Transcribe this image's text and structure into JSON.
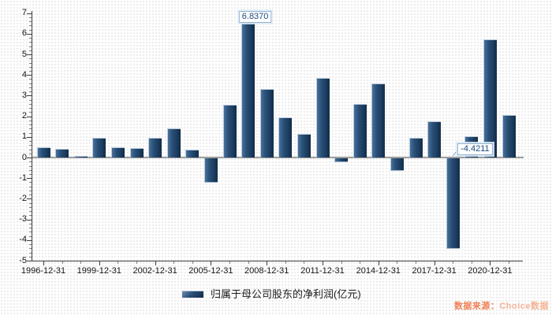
{
  "chart_data": {
    "type": "bar",
    "series_name": "归属于母公司股东的净利润(亿元)",
    "x": [
      "1996-12-31",
      "1997-12-31",
      "1998-12-31",
      "1999-12-31",
      "2000-12-31",
      "2001-12-31",
      "2002-12-31",
      "2003-12-31",
      "2004-12-31",
      "2005-12-31",
      "2006-12-31",
      "2007-12-31",
      "2008-12-31",
      "2009-12-31",
      "2010-12-31",
      "2011-12-31",
      "2012-12-31",
      "2013-12-31",
      "2014-12-31",
      "2015-12-31",
      "2016-12-31",
      "2017-12-31",
      "2018-12-31",
      "2019-12-31",
      "2020-12-31",
      "2021-12-31"
    ],
    "values": [
      0.48,
      0.42,
      0.07,
      0.97,
      0.5,
      0.45,
      0.94,
      1.4,
      0.38,
      -1.22,
      2.56,
      6.837,
      3.33,
      1.93,
      1.15,
      3.84,
      -0.22,
      2.61,
      3.58,
      -0.63,
      0.96,
      1.76,
      -4.4211,
      1.03,
      5.72,
      2.06
    ],
    "ylim": [
      -5,
      7
    ],
    "y_tick_interval": 1,
    "y_minor_tick_interval": 0.2,
    "y_tick_labels": [
      "7",
      "6",
      "5",
      "4",
      "3",
      "2",
      "1",
      "0",
      "-1",
      "-2",
      "-3",
      "-4",
      "-5"
    ],
    "x_tick_labels": [
      "1996-12-31",
      "1999-12-31",
      "2002-12-31",
      "2005-12-31",
      "2008-12-31",
      "2011-12-31",
      "2014-12-31",
      "2017-12-31",
      "2020-12-31"
    ],
    "x_major_tick_every": 3,
    "annotations": [
      {
        "x": "2007-12-31",
        "label": "6.8370"
      },
      {
        "x": "2018-12-31",
        "label": "-4.4211"
      }
    ],
    "legend_position": "bottom",
    "grid": false
  },
  "source": {
    "prefix": "数据来源：",
    "brand": "Choice数据"
  },
  "colors": {
    "bar_main": "#24466b",
    "bar_light": "#47719c",
    "bar_dark": "#122c47",
    "bar_highlight": "#b9cbdc",
    "annotation_text": "#1b4a7e",
    "annotation_border": "#93b5d4",
    "zero_line": "#9d9d9d",
    "axis": "#3c3c3c",
    "source_prefix": "#ee8155",
    "source_brand": "#f6b397"
  }
}
